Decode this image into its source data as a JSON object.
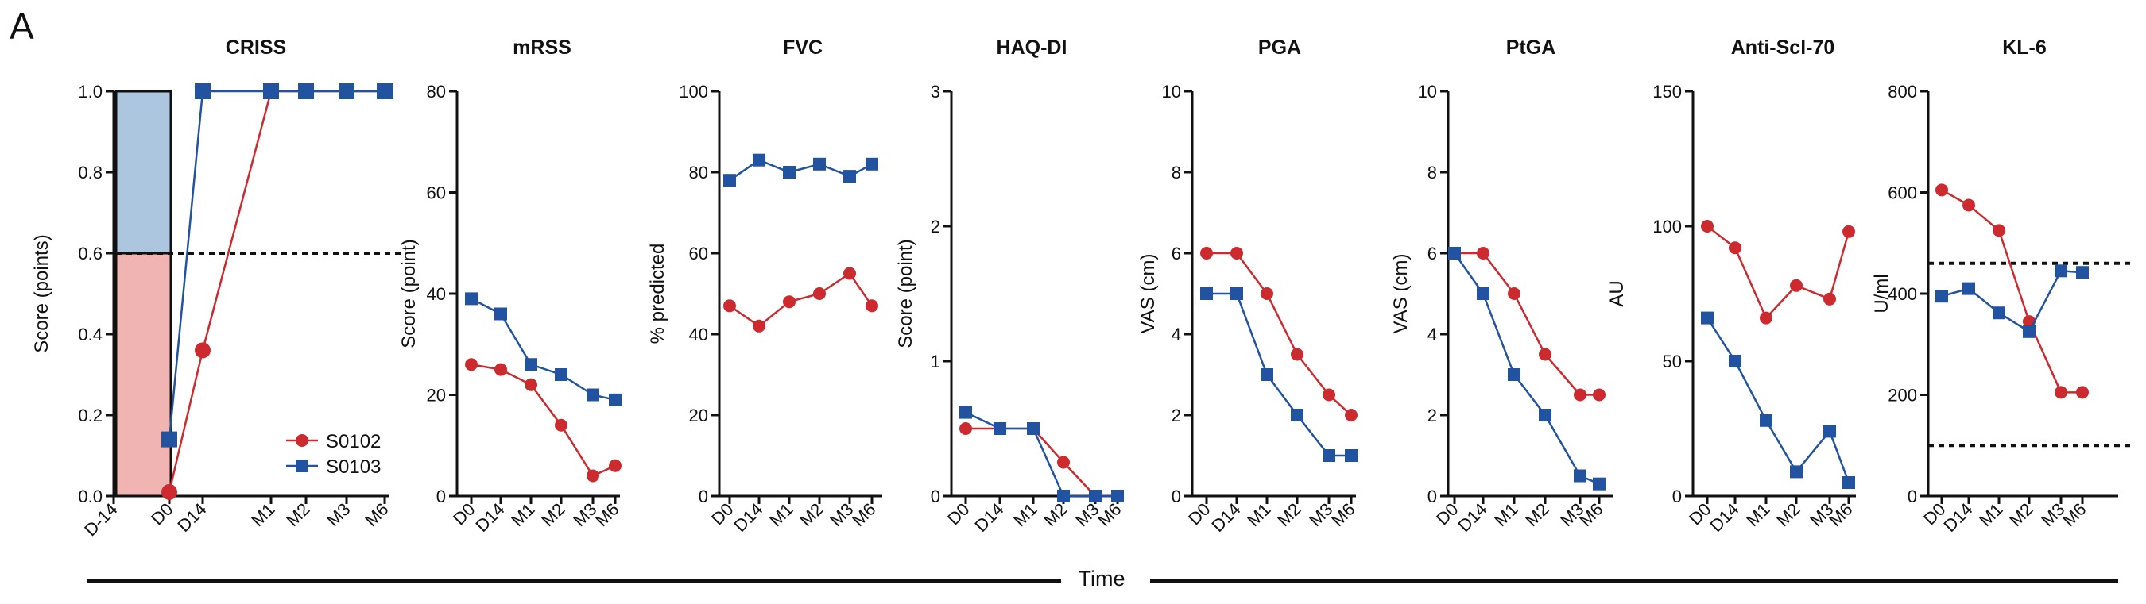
{
  "figure": {
    "panel_letter": "A",
    "shared_xlabel": "Time"
  },
  "colors": {
    "S0102": "#cc2a2e",
    "S0103": "#2153a0",
    "criss_low": "#f0b5b3",
    "criss_high": "#adc6df"
  },
  "chart_data": [
    {
      "type": "line",
      "title": "CRISS",
      "ylabel": "Score (points)",
      "ylim": [
        0,
        1
      ],
      "yticks": [
        "0.0",
        "0.2",
        "0.4",
        "0.6",
        "0.8",
        "1.0"
      ],
      "categories": [
        "D-14",
        "D0",
        "D14",
        "M1",
        "M2",
        "M3",
        "M6"
      ],
      "threshold": [
        0.6
      ],
      "shaded": [
        {
          "from": 0,
          "to": 0.6
        },
        {
          "from": 0.6,
          "to": 1.0
        }
      ],
      "legend": [
        "S0102",
        "S0103"
      ],
      "series": [
        {
          "name": "S0102",
          "marker": "circle",
          "values": [
            null,
            0.01,
            0.36,
            1.0,
            1.0,
            1.0,
            1.0
          ]
        },
        {
          "name": "S0103",
          "marker": "square",
          "values": [
            null,
            0.14,
            1.0,
            1.0,
            1.0,
            1.0,
            1.0
          ]
        }
      ]
    },
    {
      "type": "line",
      "title": "mRSS",
      "ylabel": "Score (point)",
      "ylim": [
        0,
        80
      ],
      "yticks": [
        "0",
        "20",
        "40",
        "60",
        "80"
      ],
      "categories": [
        "D0",
        "D14",
        "M1",
        "M2",
        "M3",
        "M6"
      ],
      "series": [
        {
          "name": "S0102",
          "marker": "circle",
          "values": [
            26,
            25,
            22,
            14,
            4,
            6
          ]
        },
        {
          "name": "S0103",
          "marker": "square",
          "values": [
            39,
            36,
            26,
            24,
            20,
            19
          ]
        }
      ]
    },
    {
      "type": "line",
      "title": "FVC",
      "ylabel": "% predicted",
      "ylim": [
        0,
        100
      ],
      "yticks": [
        "0",
        "20",
        "40",
        "60",
        "80",
        "100"
      ],
      "categories": [
        "D0",
        "D14",
        "M1",
        "M2",
        "M3",
        "M6"
      ],
      "series": [
        {
          "name": "S0102",
          "marker": "circle",
          "values": [
            47,
            42,
            48,
            50,
            55,
            47
          ]
        },
        {
          "name": "S0103",
          "marker": "square",
          "values": [
            78,
            83,
            80,
            82,
            79,
            82
          ]
        }
      ]
    },
    {
      "type": "line",
      "title": "HAQ-DI",
      "ylabel": "Score (point)",
      "ylim": [
        0,
        3
      ],
      "yticks": [
        "0",
        "1",
        "2",
        "3"
      ],
      "categories": [
        "D0",
        "D14",
        "M1",
        "M2",
        "M3",
        "M6"
      ],
      "series": [
        {
          "name": "S0102",
          "marker": "circle",
          "values": [
            0.5,
            0.5,
            0.5,
            0.25,
            0,
            0
          ]
        },
        {
          "name": "S0103",
          "marker": "square",
          "values": [
            0.62,
            0.5,
            0.5,
            0,
            0,
            0
          ]
        }
      ]
    },
    {
      "type": "line",
      "title": "PGA",
      "ylabel": "VAS (cm)",
      "ylim": [
        0,
        10
      ],
      "yticks": [
        "0",
        "2",
        "4",
        "6",
        "8",
        "10"
      ],
      "categories": [
        "D0",
        "D14",
        "M1",
        "M2",
        "M3",
        "M6"
      ],
      "series": [
        {
          "name": "S0102",
          "marker": "circle",
          "values": [
            6,
            6,
            5,
            3.5,
            2.5,
            2
          ]
        },
        {
          "name": "S0103",
          "marker": "square",
          "values": [
            5,
            5,
            3,
            2,
            1,
            1
          ]
        }
      ]
    },
    {
      "type": "line",
      "title": "PtGA",
      "ylabel": "VAS (cm)",
      "ylim": [
        0,
        10
      ],
      "yticks": [
        "0",
        "2",
        "4",
        "6",
        "8",
        "10"
      ],
      "categories": [
        "D0",
        "D14",
        "M1",
        "M2",
        "M3",
        "M6"
      ],
      "series": [
        {
          "name": "S0102",
          "marker": "circle",
          "values": [
            6,
            6,
            5,
            3.5,
            2.5,
            2.5
          ]
        },
        {
          "name": "S0103",
          "marker": "square",
          "values": [
            6,
            5,
            3,
            2,
            0.5,
            0.3
          ]
        }
      ]
    },
    {
      "type": "line",
      "title": "Anti-Scl-70",
      "ylabel": "AU",
      "ylim": [
        0,
        150
      ],
      "yticks": [
        "0",
        "50",
        "100",
        "150"
      ],
      "categories": [
        "D0",
        "D14",
        "M1",
        "M2",
        "M3",
        "M6"
      ],
      "series": [
        {
          "name": "S0102",
          "marker": "circle",
          "values": [
            100,
            92,
            66,
            78,
            73,
            98
          ]
        },
        {
          "name": "S0103",
          "marker": "square",
          "values": [
            66,
            50,
            28,
            9,
            24,
            5
          ]
        }
      ]
    },
    {
      "type": "line",
      "title": "KL-6",
      "ylabel": "U/ml",
      "ylim": [
        0,
        800
      ],
      "yticks": [
        "0",
        "200",
        "400",
        "600",
        "800"
      ],
      "categories": [
        "D0",
        "D14",
        "M1",
        "M2",
        "M3",
        "M6"
      ],
      "threshold": [
        460,
        100
      ],
      "series": [
        {
          "name": "S0102",
          "marker": "circle",
          "values": [
            605,
            575,
            525,
            345,
            205,
            205
          ]
        },
        {
          "name": "S0103",
          "marker": "square",
          "values": [
            395,
            410,
            362,
            325,
            445,
            442
          ]
        }
      ]
    }
  ]
}
